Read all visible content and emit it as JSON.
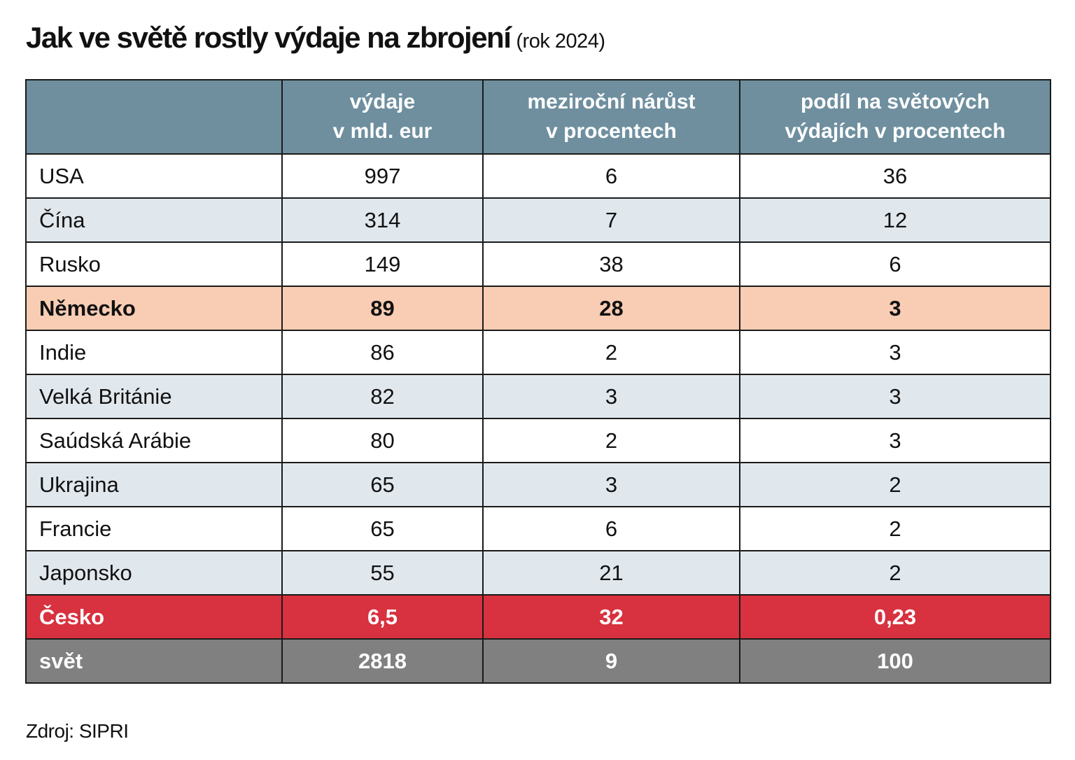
{
  "title": {
    "main": "Jak ve světě rostly výdaje na zbrojení",
    "sub": "(rok 2024)"
  },
  "source": "Zdroj: SIPRI",
  "colors": {
    "header_bg": "#6f8f9f",
    "row_shade": "#e1e8ed",
    "highlight_germany": "#f8cdb3",
    "highlight_czech": "#d8313f",
    "world_row": "#808080"
  },
  "chart_data": {
    "type": "table",
    "title": "Jak ve světě rostly výdaje na zbrojení (rok 2024)",
    "headers": [
      "",
      [
        "výdaje",
        "v mld. eur"
      ],
      [
        "meziroční nárůst",
        "v procentech"
      ],
      [
        "podíl na světových",
        "výdajích v procentech"
      ]
    ],
    "rows": [
      {
        "country": "USA",
        "spending": "997",
        "growth": "6",
        "share": "36",
        "style": "white"
      },
      {
        "country": "Čína",
        "spending": "314",
        "growth": "7",
        "share": "12",
        "style": "shade"
      },
      {
        "country": "Rusko",
        "spending": "149",
        "growth": "38",
        "share": "6",
        "style": "white"
      },
      {
        "country": "Německo",
        "spending": "89",
        "growth": "28",
        "share": "3",
        "style": "highlight"
      },
      {
        "country": "Indie",
        "spending": "86",
        "growth": "2",
        "share": "3",
        "style": "white"
      },
      {
        "country": "Velká Británie",
        "spending": "82",
        "growth": "3",
        "share": "3",
        "style": "shade"
      },
      {
        "country": "Saúdská Arábie",
        "spending": "80",
        "growth": "2",
        "share": "3",
        "style": "white"
      },
      {
        "country": "Ukrajina",
        "spending": "65",
        "growth": "3",
        "share": "2",
        "style": "shade"
      },
      {
        "country": "Francie",
        "spending": "65",
        "growth": "6",
        "share": "2",
        "style": "white"
      },
      {
        "country": "Japonsko",
        "spending": "55",
        "growth": "21",
        "share": "2",
        "style": "shade"
      },
      {
        "country": "Česko",
        "spending": "6,5",
        "growth": "32",
        "share": "0,23",
        "style": "czech"
      },
      {
        "country": "svět",
        "spending": "2818",
        "growth": "9",
        "share": "100",
        "style": "world"
      }
    ]
  }
}
